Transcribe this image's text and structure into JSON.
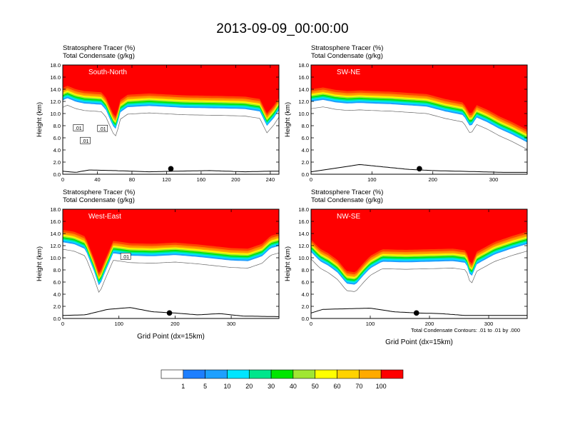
{
  "title": "2013-09-09_00:00:00",
  "footnote": "Total Condensate Contours: .01 to .01 by .000",
  "colors": {
    "levels": [
      "#ffffff",
      "#1e7fff",
      "#1ea0ff",
      "#00e5ff",
      "#00e68c",
      "#00e600",
      "#a0e632",
      "#ffff00",
      "#ffd200",
      "#ffaa00",
      "#ff8c00",
      "#ff4500",
      "#ff0000"
    ]
  },
  "colorbar": {
    "labels": [
      "1",
      "5",
      "10",
      "20",
      "30",
      "40",
      "50",
      "60",
      "70",
      "100"
    ]
  },
  "chart_data": [
    {
      "type": "heatmap",
      "label": "South-North",
      "series_titles": [
        "Stratosphere Tracer   (%)",
        "Total Condensate   (g/kg)"
      ],
      "ylabel": "Height (km)",
      "xlabel": "",
      "xlim": [
        0,
        250
      ],
      "ylim": [
        0,
        18
      ],
      "xticks": [
        "0",
        "40",
        "80",
        "120",
        "160",
        "200",
        "240"
      ],
      "yticks": [
        "0.0",
        "2.0",
        "4.0",
        "6.0",
        "8.0",
        "10.0",
        "12.0",
        "14.0",
        "16.0",
        "18.0"
      ],
      "xtick_values": [
        0,
        40,
        80,
        120,
        160,
        200,
        240
      ],
      "tropopause_profile": {
        "x": [
          0,
          5,
          15,
          25,
          35,
          45,
          50,
          58,
          62,
          66,
          75,
          100,
          140,
          180,
          210,
          228,
          236,
          244,
          250
        ],
        "h": [
          14.2,
          14.6,
          14.0,
          13.7,
          13.6,
          13.5,
          12.6,
          10.0,
          9.4,
          12.2,
          13.1,
          13.3,
          13.0,
          12.9,
          12.8,
          12.4,
          10.0,
          11.3,
          12.6
        ]
      },
      "contour_labels": [
        {
          "x": 18,
          "h": 7.6,
          "text": ".01"
        },
        {
          "x": 26,
          "h": 5.5,
          "text": ".01"
        },
        {
          "x": 46,
          "h": 7.5,
          "text": ".01"
        }
      ],
      "marker": {
        "x": 125,
        "h": 0.9
      },
      "terrain": {
        "x": [
          0,
          15,
          30,
          60,
          100,
          130,
          170,
          210,
          240,
          250
        ],
        "h": [
          0.5,
          0.3,
          0.7,
          0.6,
          0.4,
          0.5,
          0.6,
          0.4,
          0.5,
          0.5
        ]
      }
    },
    {
      "type": "heatmap",
      "label": "SW-NE",
      "series_titles": [
        "Stratosphere Tracer   (%)",
        "Total Condensate   (g/kg)"
      ],
      "ylabel": "Height (km)",
      "xlabel": "",
      "xlim": [
        0,
        355
      ],
      "ylim": [
        0,
        18
      ],
      "xticks": [
        "0",
        "100",
        "200",
        "300"
      ],
      "yticks": [
        "0.0",
        "2.0",
        "4.0",
        "6.0",
        "8.0",
        "10.0",
        "12.0",
        "14.0",
        "16.0",
        "18.0"
      ],
      "xtick_values": [
        0,
        100,
        200,
        300
      ],
      "tropopause_profile": {
        "x": [
          0,
          20,
          40,
          60,
          80,
          100,
          130,
          160,
          190,
          220,
          250,
          262,
          272,
          290,
          310,
          330,
          355
        ],
        "h": [
          14.0,
          14.3,
          13.9,
          13.7,
          13.8,
          13.7,
          13.6,
          13.4,
          13.2,
          12.4,
          11.8,
          9.8,
          11.4,
          10.6,
          9.5,
          8.6,
          7.3
        ]
      },
      "contour_labels": [],
      "marker": {
        "x": 178,
        "h": 0.9
      },
      "terrain": {
        "x": [
          0,
          40,
          80,
          120,
          160,
          200,
          240,
          280,
          320,
          355
        ],
        "h": [
          0.4,
          1.0,
          1.6,
          1.2,
          0.8,
          0.6,
          0.5,
          0.4,
          0.3,
          0.3
        ]
      }
    },
    {
      "type": "heatmap",
      "label": "West-East",
      "series_titles": [
        "Stratosphere Tracer   (%)",
        "Total Condensate   (g/kg)"
      ],
      "ylabel": "Height (km)",
      "xlabel": "Grid Point (dx=15km)",
      "xlim": [
        0,
        385
      ],
      "ylim": [
        0,
        18
      ],
      "xticks": [
        "0",
        "100",
        "200",
        "300"
      ],
      "yticks": [
        "0.0",
        "2.0",
        "4.0",
        "6.0",
        "8.0",
        "10.0",
        "12.0",
        "14.0",
        "16.0",
        "18.0"
      ],
      "xtick_values": [
        0,
        100,
        200,
        300
      ],
      "tropopause_profile": {
        "x": [
          0,
          20,
          40,
          55,
          65,
          75,
          90,
          120,
          160,
          200,
          240,
          270,
          300,
          330,
          355,
          370,
          385
        ],
        "h": [
          14.6,
          14.3,
          13.5,
          10.0,
          7.3,
          9.6,
          12.8,
          12.4,
          12.3,
          12.5,
          12.2,
          11.9,
          11.6,
          11.5,
          12.3,
          13.6,
          14.0
        ]
      },
      "contour_labels": [
        {
          "x": 112,
          "h": 10.2,
          "text": ".01"
        }
      ],
      "marker": {
        "x": 190,
        "h": 0.9
      },
      "terrain": {
        "x": [
          0,
          40,
          80,
          120,
          160,
          200,
          240,
          280,
          320,
          385
        ],
        "h": [
          0.5,
          0.6,
          1.5,
          1.8,
          1.1,
          0.9,
          0.6,
          0.8,
          0.4,
          0.3
        ]
      }
    },
    {
      "type": "heatmap",
      "label": "NW-SE",
      "series_titles": [
        "Stratosphere Tracer   (%)",
        "Total Condensate   (g/kg)"
      ],
      "ylabel": "Height (km)",
      "xlabel": "Grid Point (dx=15km)",
      "xlim": [
        0,
        365
      ],
      "ylim": [
        0,
        18
      ],
      "xticks": [
        "0",
        "100",
        "200",
        "300"
      ],
      "yticks": [
        "0.0",
        "2.0",
        "4.0",
        "6.0",
        "8.0",
        "10.0",
        "12.0",
        "14.0",
        "16.0",
        "18.0"
      ],
      "xtick_values": [
        0,
        100,
        200,
        300
      ],
      "tropopause_profile": {
        "x": [
          0,
          15,
          30,
          45,
          60,
          75,
          90,
          100,
          120,
          160,
          200,
          240,
          262,
          270,
          280,
          310,
          340,
          365
        ],
        "h": [
          13.0,
          11.5,
          10.7,
          9.6,
          7.8,
          7.6,
          9.3,
          10.3,
          11.4,
          11.3,
          11.4,
          11.5,
          11.2,
          8.7,
          11.0,
          12.6,
          13.6,
          14.3
        ]
      },
      "contour_labels": [],
      "marker": {
        "x": 178,
        "h": 0.9
      },
      "terrain": {
        "x": [
          0,
          20,
          60,
          100,
          140,
          180,
          220,
          260,
          300,
          365
        ],
        "h": [
          0.9,
          1.5,
          1.6,
          1.7,
          1.1,
          0.9,
          0.8,
          0.5,
          0.5,
          0.5
        ]
      }
    }
  ]
}
